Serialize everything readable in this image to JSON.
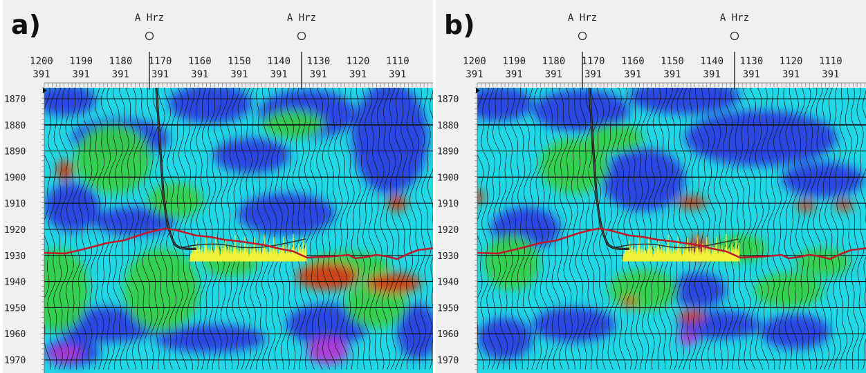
{
  "panels": [
    {
      "id": "a",
      "label": "a)",
      "horizon_label": "A Hrz",
      "xlines": [
        "1200",
        "1190",
        "1180",
        "1170",
        "1160",
        "1150",
        "1140",
        "1130",
        "1120",
        "1110"
      ],
      "inline": "391",
      "times": [
        "1870",
        "1880",
        "1890",
        "1900",
        "1910",
        "1920",
        "1930",
        "1940",
        "1950",
        "1960",
        "1970"
      ],
      "colors": {
        "background": "#20d8e6",
        "blue": "#2a3fe0",
        "green": "#35d04a",
        "red": "#d43b12",
        "magenta": "#b238d6",
        "horizon": "#c0182a",
        "log": "#f2f238"
      }
    },
    {
      "id": "b",
      "label": "b)",
      "horizon_label": "A Hrz",
      "xlines": [
        "1200",
        "1190",
        "1180",
        "1170",
        "1160",
        "1150",
        "1140",
        "1130",
        "1120",
        "1110"
      ],
      "inline": "391",
      "times": [
        "1870",
        "1880",
        "1890",
        "1900",
        "1910",
        "1920",
        "1930",
        "1940",
        "1950",
        "1960",
        "1970"
      ],
      "colors": {
        "background": "#20d8e6",
        "blue": "#2a3fe0",
        "green": "#35d04a",
        "red": "#d43b12",
        "magenta": "#b238d6",
        "horizon": "#c0182a",
        "log": "#f2f238"
      }
    }
  ]
}
